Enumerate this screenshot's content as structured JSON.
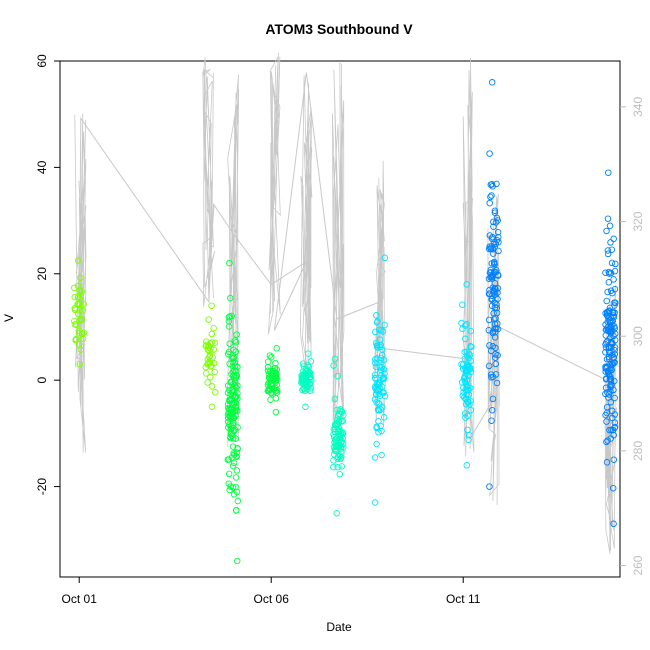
{
  "chart_data": {
    "type": "scatter",
    "title": "ATOM3 Southbound V",
    "xlabel": "Date",
    "ylabel": "V",
    "x_axis": {
      "type": "date",
      "ticks": [
        {
          "date": "2000-10-01",
          "label": "Oct 01"
        },
        {
          "date": "2000-10-06",
          "label": "Oct 06"
        },
        {
          "date": "2000-10-11",
          "label": "Oct 11"
        }
      ],
      "range": [
        "2000-09-30T12:00",
        "2000-10-15T02:00"
      ]
    },
    "y_axis": {
      "range": [
        -37,
        60
      ],
      "ticks": [
        -20,
        0,
        20,
        40,
        60
      ],
      "tick_labels": [
        "-20",
        "0",
        "20",
        "40",
        "60"
      ]
    },
    "y2_axis": {
      "range": [
        258,
        348
      ],
      "ticks": [
        260,
        280,
        300,
        320,
        340
      ],
      "tick_labels": [
        "260",
        "280",
        "300",
        "320",
        "340"
      ],
      "color": "#bdbdbd"
    },
    "series": [
      {
        "role": "points",
        "marker": "open-circle",
        "color_scale": [
          "#7cff00",
          "#00ff40",
          "#00ffc0",
          "#00e5ff",
          "#0080ff"
        ],
        "clusters": [
          {
            "date": "2000-10-01T00:00",
            "v_min": 3,
            "v_max": 22.5,
            "n": 40
          },
          {
            "date": "2000-10-04T10:00",
            "v_min": -5,
            "v_max": 14,
            "n": 35
          },
          {
            "date": "2000-10-05T00:00",
            "v_min": -34,
            "v_max": 22,
            "n": 140
          },
          {
            "date": "2000-10-06T01:00",
            "v_min": -6,
            "v_max": 6,
            "n": 60
          },
          {
            "date": "2000-10-06T22:00",
            "v_min": -5,
            "v_max": 5,
            "n": 70
          },
          {
            "date": "2000-10-07T18:00",
            "v_min": -25,
            "v_max": 4,
            "n": 80
          },
          {
            "date": "2000-10-08T20:00",
            "v_min": -23,
            "v_max": 23,
            "n": 80
          },
          {
            "date": "2000-10-11T02:00",
            "v_min": -16,
            "v_max": 18,
            "n": 70
          },
          {
            "date": "2000-10-11T19:00",
            "v_min": -20,
            "v_max": 56,
            "n": 110
          },
          {
            "date": "2000-10-14T20:00",
            "v_min": -27,
            "v_max": 39,
            "n": 150
          }
        ]
      },
      {
        "role": "line",
        "axis": "y2",
        "color": "#c8c8c8",
        "points": [
          {
            "date": "2000-10-01T00:00",
            "value": 301
          },
          {
            "date": "2000-10-01T01:00",
            "value": 338
          },
          {
            "date": "2000-10-04T09:00",
            "value": 306
          },
          {
            "date": "2000-10-04T12:00",
            "value": 323
          },
          {
            "date": "2000-10-05T00:00",
            "value": 318
          },
          {
            "date": "2000-10-06T00:00",
            "value": 309
          },
          {
            "date": "2000-10-06T22:00",
            "value": 313
          },
          {
            "date": "2000-10-06T02:00",
            "value": 301
          },
          {
            "date": "2000-10-06T22:00",
            "value": 346
          },
          {
            "date": "2000-10-07T17:00",
            "value": 303
          },
          {
            "date": "2000-10-08T20:00",
            "value": 306
          },
          {
            "date": "2000-10-08T18:00",
            "value": 298
          },
          {
            "date": "2000-10-11T03:00",
            "value": 296
          },
          {
            "date": "2000-10-11T06:00",
            "value": 283
          },
          {
            "date": "2000-10-11T19:00",
            "value": 289
          },
          {
            "date": "2000-10-11T19:30",
            "value": 302
          },
          {
            "date": "2000-10-14T20:00",
            "value": 292
          }
        ],
        "spikes": [
          {
            "date": "2000-10-01T01:00",
            "low": 276,
            "high": 344
          },
          {
            "date": "2000-10-04T09:00",
            "low": 305,
            "high": 350
          },
          {
            "date": "2000-10-05T00:00",
            "low": 280,
            "high": 346
          },
          {
            "date": "2000-10-06T02:00",
            "low": 300,
            "high": 350
          },
          {
            "date": "2000-10-06T22:00",
            "low": 293,
            "high": 350
          },
          {
            "date": "2000-10-07T18:00",
            "low": 282,
            "high": 350
          },
          {
            "date": "2000-10-08T20:00",
            "low": 284,
            "high": 332
          },
          {
            "date": "2000-10-11T03:00",
            "low": 277,
            "high": 350
          },
          {
            "date": "2000-10-11T19:00",
            "low": 270,
            "high": 328
          },
          {
            "date": "2000-10-14T20:00",
            "low": 262,
            "high": 309
          }
        ]
      }
    ],
    "legend": "none",
    "grid": false
  }
}
